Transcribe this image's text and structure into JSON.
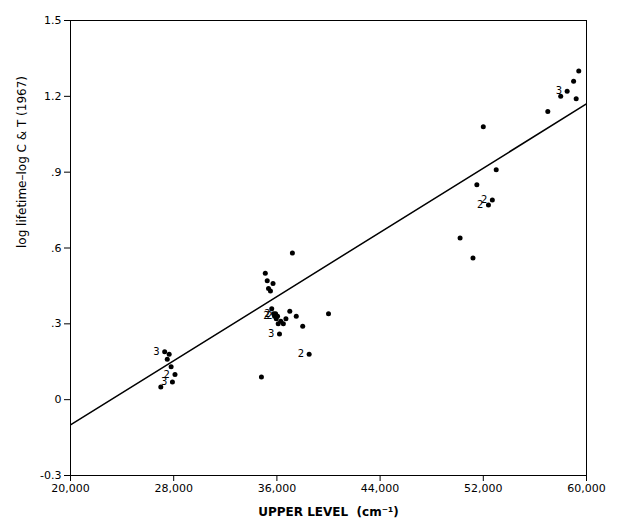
{
  "chart_data": {
    "type": "scatter",
    "xlabel": "UPPER LEVEL  (cm⁻¹)",
    "ylabel": "log lifetime–log C & T (1967)",
    "xlim": [
      20000,
      60000
    ],
    "ylim": [
      -0.3,
      1.5
    ],
    "xticks": [
      {
        "value": 20000,
        "label": "20,000"
      },
      {
        "value": 28000,
        "label": "28,000"
      },
      {
        "value": 36000,
        "label": "36,000"
      },
      {
        "value": 44000,
        "label": "44,000"
      },
      {
        "value": 52000,
        "label": "52,000"
      },
      {
        "value": 60000,
        "label": "60,000"
      }
    ],
    "yticks": [
      {
        "value": -0.3,
        "label": "-0.3"
      },
      0,
      {
        "value": 0.3,
        "label": ".3"
      },
      {
        "value": 0.6,
        "label": ".6"
      },
      {
        "value": 0.9,
        "label": ".9"
      },
      1.2,
      1.5
    ],
    "x": [
      27000,
      27300,
      27500,
      27650,
      27800,
      27900,
      28100,
      34800,
      35100,
      35250,
      35350,
      35500,
      35600,
      35700,
      35750,
      35820,
      35900,
      35950,
      36050,
      36100,
      36200,
      36300,
      36500,
      36700,
      37000,
      37200,
      37500,
      38000,
      38500,
      40000,
      50200,
      51200,
      51500,
      52000,
      52400,
      52700,
      53000,
      57000,
      58000,
      58500,
      59000,
      59200,
      59400
    ],
    "values": [
      0.05,
      0.19,
      0.16,
      0.18,
      0.13,
      0.07,
      0.1,
      0.09,
      0.5,
      0.47,
      0.44,
      0.43,
      0.36,
      0.46,
      0.34,
      0.33,
      0.34,
      0.32,
      0.33,
      0.3,
      0.26,
      0.31,
      0.3,
      0.32,
      0.35,
      0.58,
      0.33,
      0.29,
      0.18,
      0.34,
      0.64,
      0.56,
      0.85,
      1.08,
      0.77,
      0.79,
      0.91,
      1.14,
      1.2,
      1.22,
      1.26,
      1.19,
      1.3
    ],
    "fit_line": {
      "x": [
        20000,
        60000
      ],
      "values": [
        -0.1,
        1.17
      ]
    },
    "annotations": [
      {
        "x": 27300,
        "y": 0.19,
        "text": "3"
      },
      {
        "x": 27900,
        "y": 0.07,
        "text": "3"
      },
      {
        "x": 28100,
        "y": 0.1,
        "text": "2"
      },
      {
        "x": 35820,
        "y": 0.33,
        "text": "2"
      },
      {
        "x": 35900,
        "y": 0.34,
        "text": "2"
      },
      {
        "x": 36050,
        "y": 0.33,
        "text": "2"
      },
      {
        "x": 36200,
        "y": 0.26,
        "text": "3"
      },
      {
        "x": 38500,
        "y": 0.18,
        "text": "2"
      },
      {
        "x": 52400,
        "y": 0.77,
        "text": "2"
      },
      {
        "x": 52700,
        "y": 0.79,
        "text": "2"
      },
      {
        "x": 58500,
        "y": 1.22,
        "text": "3"
      }
    ]
  }
}
